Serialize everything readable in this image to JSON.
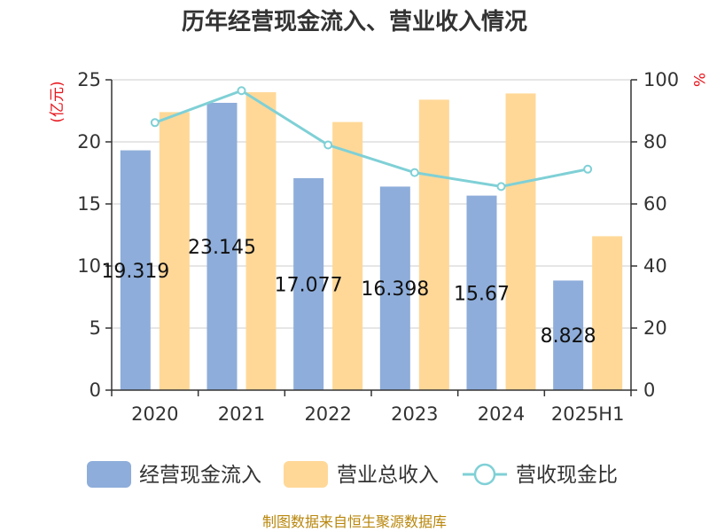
{
  "chart_data": {
    "type": "bar",
    "title": "历年经营现金流入、营业收入情况",
    "categories": [
      "2020",
      "2021",
      "2022",
      "2023",
      "2024",
      "2025H1"
    ],
    "series": [
      {
        "name": "经营现金流入",
        "kind": "bar",
        "axis": "left",
        "color": "#8eadda",
        "values": [
          19.319,
          23.145,
          17.077,
          16.398,
          15.67,
          8.828
        ],
        "labels": [
          "19.319",
          "23.145",
          "17.077",
          "16.398",
          "15.67",
          "8.828"
        ]
      },
      {
        "name": "营业总收入",
        "kind": "bar",
        "axis": "left",
        "color": "#ffd898",
        "values": [
          22.4,
          24.0,
          21.6,
          23.4,
          23.9,
          12.4
        ]
      },
      {
        "name": "营收现金比",
        "kind": "line",
        "axis": "right",
        "color": "#7fd0d6",
        "values": [
          86.2,
          96.5,
          79.0,
          70.1,
          65.6,
          71.2
        ]
      }
    ],
    "y_left": {
      "unit": "(亿元)",
      "lim": [
        0,
        25
      ],
      "ticks": [
        "0",
        "5",
        "10",
        "15",
        "20",
        "25"
      ]
    },
    "y_right": {
      "unit": "%",
      "lim": [
        0,
        100
      ],
      "ticks": [
        "0",
        "20",
        "40",
        "60",
        "80",
        "100"
      ]
    },
    "grid": true,
    "legend": "bottom"
  },
  "source": "制图数据来自恒生聚源数据库",
  "colors": {
    "axis": "#333333",
    "grid": "#cccccc",
    "unit": "#e8141c",
    "source": "#b8860b"
  }
}
